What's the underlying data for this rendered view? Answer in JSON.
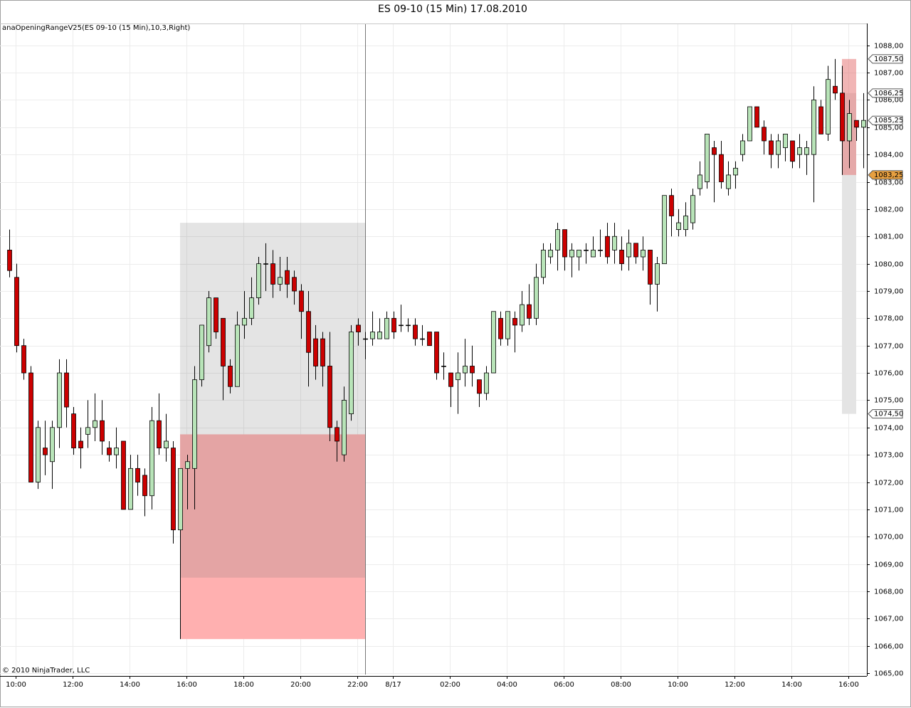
{
  "chart_data": {
    "type": "candlestick",
    "title": "ES 09-10 (15 Min)  17.08.2010",
    "indicator_label": "anaOpeningRangeV25(ES 09-10 (15 Min),10,3,Right)",
    "copyright": "© 2010 NinjaTrader, LLC",
    "categories": [
      null,
      "10:00",
      null,
      null,
      null,
      null,
      null,
      null,
      null,
      "12:00",
      null,
      null,
      null,
      null,
      null,
      null,
      null,
      "14:00",
      null,
      null,
      null,
      null,
      null,
      null,
      null,
      "16:00",
      null,
      null,
      null,
      null,
      null,
      null,
      null,
      "18:00",
      null,
      null,
      null,
      null,
      null,
      null,
      null,
      "20:00",
      null,
      null,
      null,
      null,
      null,
      null,
      null,
      "22:00",
      null,
      null,
      null,
      null,
      "8/17",
      null,
      null,
      null,
      null,
      null,
      null,
      null,
      "02:00",
      null,
      null,
      null,
      null,
      null,
      null,
      null,
      "04:00",
      null,
      null,
      null,
      null,
      null,
      null,
      null,
      "06:00",
      null,
      null,
      null,
      null,
      null,
      null,
      null,
      "08:00",
      null,
      null,
      null,
      null,
      null,
      null,
      null,
      "10:00",
      null,
      null,
      null,
      null,
      null,
      null,
      null,
      "12:00",
      null,
      null,
      null,
      null,
      null,
      null,
      null,
      "14:00",
      null,
      null,
      null,
      null,
      null,
      null,
      null,
      "16:00",
      null,
      null
    ],
    "open": [
      1080.5,
      1079.5,
      1077,
      1076,
      1072,
      1073.25,
      1072.75,
      1074,
      1076,
      1074.5,
      1073.5,
      1073.75,
      1074,
      1074.25,
      1073.25,
      1073,
      1073.5,
      1071,
      1072.5,
      1072.25,
      1071.5,
      1074.25,
      1073.25,
      1073.25,
      1070.25,
      1072.5,
      1072.5,
      1075.75,
      1077,
      1078.75,
      1078,
      1076.25,
      1075.5,
      1077.75,
      1078,
      1078.75,
      1080,
      1080,
      1079.25,
      1079.75,
      1079.5,
      1079,
      1078.25,
      1077.25,
      1077.25,
      1076.25,
      1074,
      1073,
      1074.5,
      1077.75,
      1077.25,
      1077.25,
      1077.25,
      1077.25,
      1078,
      1077.75,
      1077.75,
      1077.75,
      1077.25,
      1077.5,
      1077.5,
      1076.25,
      1076,
      1075.75,
      1076,
      1076.25,
      1075.75,
      1075.25,
      1076,
      1078,
      1077.25,
      1078,
      1077.75,
      1078.5,
      1078,
      1079.5,
      1080.25,
      1080.5,
      1081.25,
      1080.25,
      1080.25,
      1080.5,
      1080.25,
      1080.5,
      1081,
      1080.5,
      1080.5,
      1080.25,
      1080.75,
      1080.25,
      1080.5,
      1079.25,
      1080,
      1082.5,
      1081.25,
      1081.25,
      1081.5,
      1082.75,
      1083,
      1084.25,
      1084,
      1082.75,
      1083.25,
      1084,
      1084.5,
      1085.75,
      1085,
      1084.5,
      1084,
      1084.25,
      1084.5,
      1084,
      1084,
      1084,
      1085.75,
      1084.75,
      1086.5,
      1086.25,
      1084.5,
      1085.25,
      1085
    ],
    "high": [
      1081.25,
      1080,
      1077.25,
      1076.25,
      1074.25,
      1074.25,
      1074.25,
      1076.5,
      1076.5,
      1074.75,
      1074,
      1075,
      1075.25,
      1075,
      1073.5,
      1074,
      1073.5,
      1073,
      1073,
      1072.5,
      1074.75,
      1075.25,
      1074.5,
      1073.5,
      1072.5,
      1073,
      1076.25,
      1077.75,
      1079,
      1078.75,
      1078,
      1076.5,
      1078.25,
      1079,
      1079.5,
      1080.25,
      1080.75,
      1080.5,
      1080.25,
      1080.25,
      1079.75,
      1079.25,
      1079,
      1077.75,
      1077.5,
      1077.5,
      1074.25,
      1075.5,
      1077.75,
      1078,
      1077.5,
      1078.25,
      1078,
      1078.25,
      1078.25,
      1078.5,
      1078,
      1078,
      1077.75,
      1077.5,
      1077.5,
      1076.75,
      1076,
      1076.75,
      1077.25,
      1077,
      1075.75,
      1076.25,
      1078.25,
      1078.25,
      1078.25,
      1078.25,
      1079,
      1079.25,
      1080,
      1080.75,
      1080.75,
      1081.5,
      1081.25,
      1080.75,
      1080.5,
      1080.75,
      1081,
      1081.25,
      1081.5,
      1081.5,
      1081,
      1081.25,
      1080.75,
      1081,
      1080.5,
      1080.25,
      1082.5,
      1082.75,
      1082,
      1082.25,
      1082.75,
      1083.75,
      1084.75,
      1084.5,
      1084.5,
      1083.75,
      1083.75,
      1084.75,
      1085.75,
      1085.75,
      1085.25,
      1084.75,
      1084.75,
      1084.75,
      1084.5,
      1084.75,
      1084.5,
      1086.5,
      1086,
      1087.25,
      1087.5,
      1087.25,
      1086,
      1085.25,
      1086.25
    ],
    "low": [
      1079.5,
      1076.75,
      1075.75,
      1072,
      1071.75,
      1072.25,
      1071.75,
      1073.25,
      1074,
      1073,
      1072.5,
      1073.25,
      1073.5,
      1073,
      1072.75,
      1072.5,
      1071,
      1071,
      1071.5,
      1070.75,
      1071,
      1073,
      1072.75,
      1069.75,
      1066.25,
      1071,
      1071,
      1075.5,
      1076.75,
      1077.25,
      1075,
      1075.25,
      1075.5,
      1077.25,
      1077.75,
      1078.5,
      1079,
      1078.75,
      1079,
      1078.75,
      1078.5,
      1077.25,
      1075.5,
      1075.75,
      1075.5,
      1073.5,
      1072.75,
      1072.75,
      1074.25,
      1077,
      1076.5,
      1077,
      1077.25,
      1077.25,
      1077.25,
      1077.5,
      1077.5,
      1077,
      1077,
      1077,
      1075.75,
      1075.75,
      1074.75,
      1074.5,
      1075.5,
      1075.5,
      1074.75,
      1075,
      1076,
      1077,
      1077,
      1076.75,
      1077.5,
      1077.75,
      1077.75,
      1079.25,
      1080,
      1079.75,
      1079.75,
      1079.5,
      1079.75,
      1080,
      1080.25,
      1080.25,
      1080,
      1080,
      1079.75,
      1079.75,
      1080,
      1079.75,
      1078.5,
      1078.25,
      1080,
      1081,
      1081,
      1081,
      1081.25,
      1082.5,
      1082.75,
      1082.25,
      1082.75,
      1082.5,
      1082.75,
      1083.75,
      1084.5,
      1085,
      1084,
      1083.5,
      1083.5,
      1083.75,
      1083.5,
      1083.5,
      1083.25,
      1082.25,
      1084.75,
      1084.5,
      1086,
      1083.25,
      1083.5,
      1084.5,
      1083.5
    ],
    "close": [
      1079.75,
      1077,
      1076,
      1072,
      1074,
      1073,
      1074,
      1076,
      1074.75,
      1073.25,
      1073.25,
      1074,
      1074.25,
      1073.5,
      1073,
      1073.25,
      1071,
      1072.5,
      1072,
      1071.5,
      1074.25,
      1073.25,
      1073.5,
      1070.25,
      1072.5,
      1072.75,
      1075.75,
      1077.75,
      1078.75,
      1077.5,
      1076.25,
      1075.5,
      1077.75,
      1078,
      1078.75,
      1080,
      1080,
      1079.25,
      1079.5,
      1079.25,
      1079,
      1078.25,
      1076.75,
      1076.25,
      1076.25,
      1074,
      1073.5,
      1075,
      1077.5,
      1077.5,
      1077.25,
      1077.5,
      1077.5,
      1078,
      1077.5,
      1077.75,
      1077.75,
      1077.25,
      1077.25,
      1077,
      1076,
      1076.25,
      1075.5,
      1076,
      1076.25,
      1076,
      1075.25,
      1076,
      1078.25,
      1077.25,
      1078.25,
      1077.75,
      1078.5,
      1078,
      1079.5,
      1080.5,
      1080.5,
      1081.25,
      1080.25,
      1080.5,
      1080.5,
      1080.5,
      1080.5,
      1080.5,
      1080.25,
      1081,
      1080,
      1080.75,
      1080.25,
      1080.5,
      1079.25,
      1080,
      1082.5,
      1081.75,
      1081.5,
      1081.75,
      1082.5,
      1083.25,
      1084.75,
      1084,
      1083,
      1083.25,
      1083.5,
      1084.5,
      1085.75,
      1085,
      1084.5,
      1084,
      1084.5,
      1084.75,
      1083.75,
      1084.25,
      1084.25,
      1086,
      1084.75,
      1086.75,
      1086.25,
      1084.5,
      1085.5,
      1085,
      1085.25
    ],
    "up_color": "#b8e4b8",
    "down_color": "#cc0000",
    "zones": [
      {
        "start": 24,
        "end": 50,
        "top": 1073.75,
        "bottom": 1066.25,
        "color": "#ffb0b0"
      },
      {
        "start": 24,
        "end": 50,
        "top": 1081.5,
        "bottom": 1068.5,
        "color": "rgba(120,120,120,0.2)"
      },
      {
        "start": 117,
        "end": 119,
        "top": 1086.25,
        "bottom": 1074.5,
        "color": "#e4e4e4"
      },
      {
        "start": 117,
        "end": 119,
        "top": 1087.5,
        "bottom": 1083.25,
        "color": "rgba(230,120,120,0.55)"
      }
    ],
    "ylim": [
      1064.95,
      1088.8
    ],
    "yticks": [
      {
        "value": 1065,
        "label": "1065,00"
      },
      {
        "value": 1066,
        "label": "1066,00"
      },
      {
        "value": 1067,
        "label": "1067,00"
      },
      {
        "value": 1068,
        "label": "1068,00"
      },
      {
        "value": 1069,
        "label": "1069,00"
      },
      {
        "value": 1070,
        "label": "1070,00"
      },
      {
        "value": 1071,
        "label": "1071,00"
      },
      {
        "value": 1072,
        "label": "1072,00"
      },
      {
        "value": 1073,
        "label": "1073,00"
      },
      {
        "value": 1074,
        "label": "1074,00"
      },
      {
        "value": 1075,
        "label": "1075,00"
      },
      {
        "value": 1076,
        "label": "1076,00"
      },
      {
        "value": 1077,
        "label": "1077,00"
      },
      {
        "value": 1078,
        "label": "1078,00"
      },
      {
        "value": 1079,
        "label": "1079,00"
      },
      {
        "value": 1080,
        "label": "1080,00"
      },
      {
        "value": 1081,
        "label": "1081,00"
      },
      {
        "value": 1082,
        "label": "1082,00"
      },
      {
        "value": 1083,
        "label": "1083,00"
      },
      {
        "value": 1084,
        "label": "1084,00"
      },
      {
        "value": 1085,
        "label": "1085,00"
      },
      {
        "value": 1086,
        "label": "1086,00"
      },
      {
        "value": 1087,
        "label": "1087,00"
      },
      {
        "value": 1088,
        "label": "1088,00"
      }
    ],
    "price_markers": [
      {
        "value": 1087.5,
        "label": "1087,50",
        "color": "#ffffff"
      },
      {
        "value": 1086.25,
        "label": "1086,25",
        "color": "#ffffff"
      },
      {
        "value": 1085.25,
        "label": "1085,25",
        "color": "#ffffff"
      },
      {
        "value": 1083.25,
        "label": "1083,25",
        "color": "#e8a040"
      },
      {
        "value": 1074.5,
        "label": "1074,50",
        "color": "#ffffff"
      }
    ],
    "grid": true
  }
}
